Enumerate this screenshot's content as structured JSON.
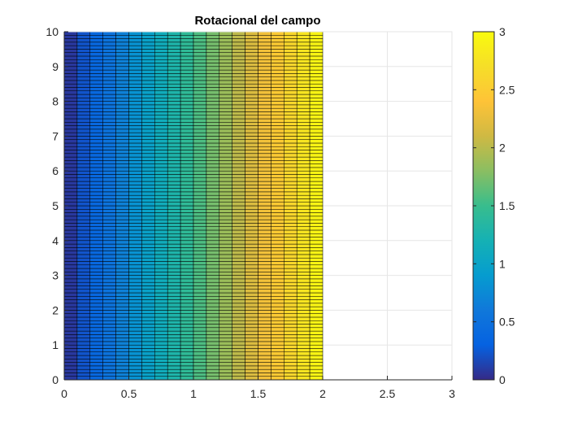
{
  "chart_data": {
    "type": "heatmap",
    "title": "Rotacional del campo",
    "x": {
      "min": 0,
      "max": 2,
      "cells": 20
    },
    "y": {
      "min": 0,
      "max": 10,
      "cells": 100
    },
    "z_rule": "z = 1.5 * x",
    "xlim": [
      0,
      3
    ],
    "ylim": [
      0,
      10
    ],
    "xticks": [
      0,
      0.5,
      1,
      1.5,
      2,
      2.5,
      3
    ],
    "xtick_labels": [
      "0",
      "0.5",
      "1",
      "1.5",
      "2",
      "2.5",
      "3"
    ],
    "yticks": [
      0,
      1,
      2,
      3,
      4,
      5,
      6,
      7,
      8,
      9,
      10
    ],
    "ytick_labels": [
      "0",
      "1",
      "2",
      "3",
      "4",
      "5",
      "6",
      "7",
      "8",
      "9",
      "10"
    ],
    "grid": true,
    "edge_color": "#000000",
    "colormap": "parula",
    "colorbar": {
      "location": "right",
      "clim": [
        0,
        3
      ],
      "ticks": [
        0,
        0.5,
        1,
        1.5,
        2,
        2.5,
        3
      ],
      "tick_labels": [
        "0",
        "0.5",
        "1",
        "1.5",
        "2",
        "2.5",
        "3"
      ]
    }
  }
}
